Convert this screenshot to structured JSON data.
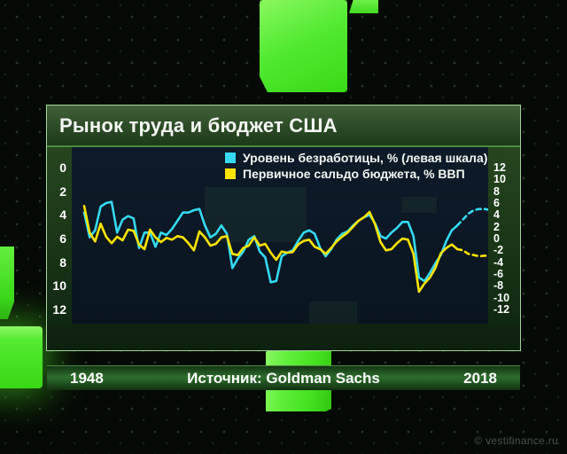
{
  "panel": {
    "title": "Рынок труда и бюджет США",
    "footer": {
      "year_start": "1948",
      "source": "Источник: Goldman Sachs",
      "year_end": "2018"
    }
  },
  "watermark": "© vestifinance.ru",
  "colors": {
    "unemployment_line": "#35d9f2",
    "budget_line": "#ffe400",
    "panel_green": "#2c4a26",
    "footer_green": "#2e6d2c",
    "cube_green": "#4ce32e",
    "plot_background": "#0c1824",
    "text": "#ffffff"
  },
  "chart_data": {
    "type": "line",
    "title": "Рынок труда и бюджет США",
    "source": "Источник: Goldman Sachs",
    "x_range": [
      1948,
      2020
    ],
    "x_step": 1,
    "x_tick_labels": [
      "1948",
      "2018"
    ],
    "grid": false,
    "legend_position": "top-right",
    "left_axis": {
      "label": "Уровень безработицы, %",
      "ticks": [
        0,
        2,
        4,
        6,
        8,
        10,
        12
      ],
      "range": [
        0,
        12
      ],
      "inverted": true
    },
    "right_axis": {
      "label": "Первичное сальдо бюджета, % ВВП",
      "ticks": [
        12,
        10,
        8,
        6,
        4,
        2,
        0,
        -2,
        -4,
        -6,
        -8,
        -10,
        -12
      ],
      "range": [
        -12,
        12
      ]
    },
    "series": [
      {
        "name": "Уровень безработицы, % (левая шкала)",
        "color": "#35d9f2",
        "axis": "left",
        "dashed_from_year": 2016,
        "values": [
          3.8,
          5.9,
          5.3,
          3.3,
          3.0,
          2.9,
          5.5,
          4.4,
          4.1,
          4.3,
          6.8,
          5.5,
          5.5,
          6.7,
          5.5,
          5.7,
          5.2,
          4.5,
          3.8,
          3.8,
          3.6,
          3.5,
          4.9,
          5.9,
          5.6,
          4.9,
          5.6,
          8.5,
          7.7,
          7.1,
          6.1,
          5.8,
          7.1,
          7.6,
          9.7,
          9.6,
          7.5,
          7.2,
          7.0,
          6.2,
          5.5,
          5.3,
          5.6,
          6.8,
          7.5,
          6.9,
          6.1,
          5.6,
          5.4,
          4.9,
          4.5,
          4.2,
          4.0,
          4.7,
          5.8,
          6.0,
          5.5,
          5.1,
          4.6,
          4.6,
          5.8,
          9.3,
          9.6,
          8.9,
          8.1,
          7.4,
          6.2,
          5.3,
          4.9,
          4.4,
          3.9,
          3.6,
          3.5,
          3.5,
          3.6
        ]
      },
      {
        "name": "Первичное сальдо бюджета, % ВВП",
        "color": "#ffe400",
        "axis": "right",
        "dashed_from_year": 2016,
        "values": [
          5.5,
          1.0,
          -0.5,
          2.5,
          0.3,
          -0.8,
          0.3,
          -0.3,
          1.5,
          1.3,
          -1.0,
          -1.8,
          1.5,
          0.2,
          -0.6,
          0.1,
          -0.2,
          0.4,
          0.2,
          -0.8,
          -2.0,
          1.2,
          0.2,
          -1.2,
          -0.9,
          0.2,
          0.4,
          -2.6,
          -2.8,
          -1.6,
          -1.2,
          0.2,
          -1.2,
          -0.9,
          -2.4,
          -3.6,
          -2.2,
          -2.4,
          -2.3,
          -1.0,
          -0.4,
          -0.2,
          -1.4,
          -1.8,
          -2.6,
          -1.6,
          -0.5,
          0.3,
          1.0,
          2.0,
          3.0,
          3.6,
          4.5,
          2.4,
          -0.6,
          -2.0,
          -1.8,
          -0.8,
          0.0,
          -0.2,
          -2.6,
          -9.0,
          -7.6,
          -6.6,
          -5.0,
          -2.5,
          -1.6,
          -1.0,
          -1.8,
          -2.0,
          -2.6,
          -2.8,
          -3.0,
          -2.9,
          -3.0
        ]
      }
    ]
  }
}
